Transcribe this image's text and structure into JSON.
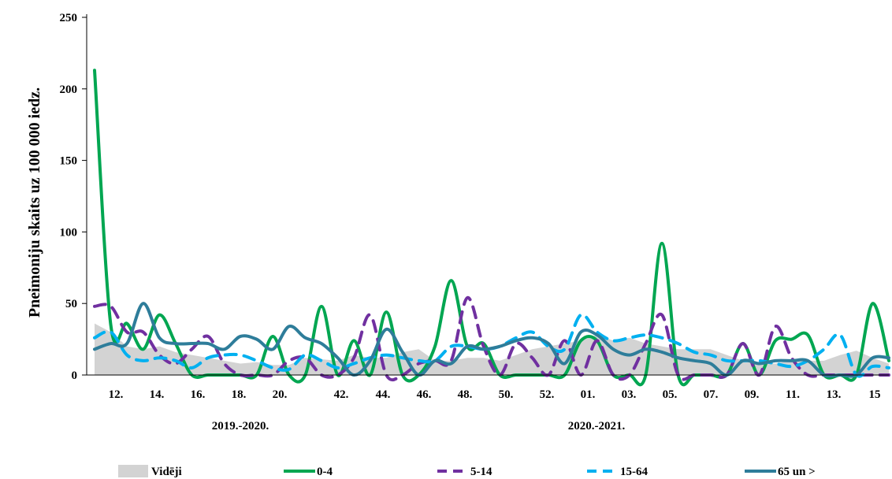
{
  "chart_data": {
    "type": "line",
    "title": "",
    "ylabel": "Pneimoniju skaits uz 100 000 iedz.",
    "xlabel": "",
    "ylim": [
      0,
      250
    ],
    "yticks": [
      "0",
      "50",
      "100",
      "150",
      "200",
      "250"
    ],
    "x_tick_labels": [
      "12.",
      "14.",
      "16.",
      "18.",
      "20.",
      "42.",
      "44.",
      "46.",
      "48.",
      "50.",
      "52.",
      "01.",
      "03.",
      "05.",
      "07.",
      "09.",
      "11.",
      "13.",
      "15"
    ],
    "seasons": [
      "2019.-2020.",
      "2020.-2021."
    ],
    "grid": false,
    "legend_position": "bottom",
    "series": [
      {
        "name": "Vidēji",
        "style": "area",
        "color": "#d3d3d3",
        "values": [
          36,
          30,
          20,
          18,
          20,
          16,
          14,
          12,
          10,
          8,
          9,
          7,
          7,
          12,
          11,
          10,
          14,
          12,
          12,
          16,
          18,
          10,
          10,
          12,
          12,
          10,
          14,
          18,
          20,
          22,
          24,
          28,
          24,
          26,
          22,
          20,
          18,
          18,
          18,
          14,
          10,
          8,
          8,
          10,
          10,
          10,
          14,
          17,
          12,
          8
        ]
      },
      {
        "name": "0-4",
        "style": "solid",
        "color": "#00a651",
        "values": [
          213,
          35,
          36,
          18,
          42,
          22,
          0,
          0,
          0,
          0,
          0,
          27,
          0,
          0,
          48,
          0,
          24,
          0,
          44,
          0,
          0,
          20,
          66,
          20,
          22,
          0,
          0,
          0,
          0,
          0,
          24,
          24,
          0,
          0,
          0,
          92,
          0,
          0,
          0,
          0,
          22,
          0,
          24,
          25,
          28,
          0,
          0,
          0,
          50,
          10
        ]
      },
      {
        "name": "5-14",
        "style": "dashed",
        "color": "#7030a0",
        "values": [
          48,
          48,
          30,
          30,
          14,
          8,
          18,
          27,
          8,
          0,
          0,
          0,
          10,
          12,
          0,
          0,
          12,
          42,
          0,
          0,
          8,
          10,
          10,
          54,
          20,
          0,
          22,
          12,
          0,
          24,
          0,
          24,
          0,
          0,
          22,
          42,
          0,
          0,
          0,
          0,
          22,
          0,
          34,
          12,
          0,
          0,
          0,
          0,
          0,
          0
        ]
      },
      {
        "name": "15-64",
        "style": "dashed",
        "color": "#00b0f0",
        "values": [
          26,
          30,
          14,
          10,
          12,
          10,
          5,
          12,
          14,
          14,
          10,
          5,
          4,
          14,
          10,
          5,
          8,
          12,
          14,
          12,
          10,
          10,
          20,
          20,
          18,
          20,
          26,
          30,
          20,
          18,
          42,
          30,
          24,
          26,
          28,
          26,
          22,
          16,
          14,
          10,
          10,
          10,
          8,
          6,
          10,
          18,
          28,
          0,
          6,
          5
        ]
      },
      {
        "name": "65 un >",
        "style": "solid",
        "color": "#2e7d9a",
        "values": [
          18,
          22,
          22,
          50,
          26,
          22,
          22,
          22,
          18,
          27,
          25,
          18,
          34,
          26,
          22,
          12,
          0,
          10,
          32,
          16,
          0,
          10,
          8,
          20,
          18,
          20,
          24,
          26,
          22,
          8,
          30,
          28,
          18,
          14,
          18,
          16,
          12,
          10,
          8,
          0,
          10,
          8,
          10,
          10,
          10,
          0,
          0,
          0,
          12,
          12
        ]
      }
    ]
  }
}
